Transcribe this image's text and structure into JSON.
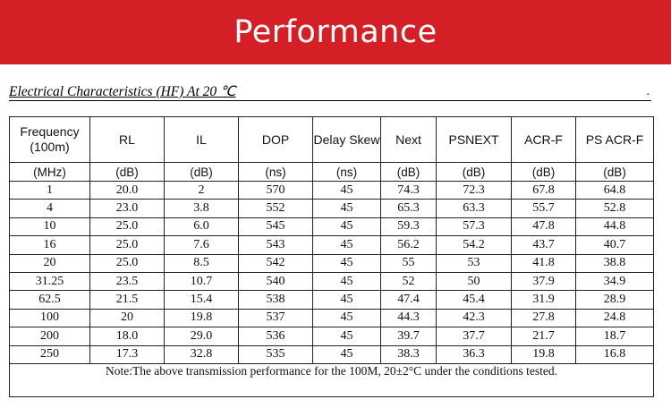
{
  "banner": {
    "title": "Performance",
    "color": "#d51f26"
  },
  "subtitle": "Electrical Characteristics (HF) At 20 ℃",
  "subtitle_end": ".",
  "table": {
    "headers": [
      "Frequency (100m)",
      "RL",
      "IL",
      "DOP",
      "Delay Skew",
      "Next",
      "PSNEXT",
      "ACR-F",
      "PS ACR-F"
    ],
    "units": [
      "(MHz)",
      "(dB)",
      "(dB)",
      "(ns)",
      "(ns)",
      "(dB)",
      "(dB)",
      "(dB)",
      "(dB)"
    ],
    "rows": [
      [
        "1",
        "20.0",
        "2",
        "570",
        "45",
        "74.3",
        "72.3",
        "67.8",
        "64.8"
      ],
      [
        "4",
        "23.0",
        "3.8",
        "552",
        "45",
        "65.3",
        "63.3",
        "55.7",
        "52.8"
      ],
      [
        "10",
        "25.0",
        "6.0",
        "545",
        "45",
        "59.3",
        "57.3",
        "47.8",
        "44.8"
      ],
      [
        "16",
        "25.0",
        "7.6",
        "543",
        "45",
        "56.2",
        "54.2",
        "43.7",
        "40.7"
      ],
      [
        "20",
        "25.0",
        "8.5",
        "542",
        "45",
        "55",
        "53",
        "41.8",
        "38.8"
      ],
      [
        "31.25",
        "23.5",
        "10.7",
        "540",
        "45",
        "52",
        "50",
        "37.9",
        "34.9"
      ],
      [
        "62.5",
        "21.5",
        "15.4",
        "538",
        "45",
        "47.4",
        "45.4",
        "31.9",
        "28.9"
      ],
      [
        "100",
        "20",
        "19.8",
        "537",
        "45",
        "44.3",
        "42.3",
        "27.8",
        "24.8"
      ],
      [
        "200",
        "18.0",
        "29.0",
        "536",
        "45",
        "39.7",
        "37.7",
        "21.7",
        "18.7"
      ],
      [
        "250",
        "17.3",
        "32.8",
        "535",
        "45",
        "38.3",
        "36.3",
        "19.8",
        "16.8"
      ]
    ],
    "note": "Note:The above transmission performance for the 100M, 20±2°C under the conditions tested."
  }
}
